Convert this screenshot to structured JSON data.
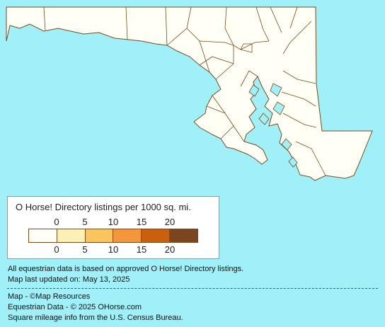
{
  "map": {
    "fill_color": "#fffff5",
    "border_color": "#7a4a1a",
    "water_color": "#a0f0fa"
  },
  "legend": {
    "title": "O Horse! Directory listings per 1000 sq. mi.",
    "top_ticks": [
      "0",
      "5",
      "10",
      "15",
      "20"
    ],
    "bottom_ticks": [
      "0",
      "5",
      "10",
      "15",
      "20"
    ],
    "swatches": [
      "#fffff5",
      "#fdf0b4",
      "#fbc55e",
      "#f4963a",
      "#c96010",
      "#7b4520"
    ]
  },
  "notes": {
    "data_basis": "All equestrian data is based on approved O Horse! Directory listings.",
    "updated": "Map last updated on: May 13, 2025"
  },
  "credits": {
    "map": "Map - ©Map Resources",
    "equestrian": "Equestrian Data - © 2025 OHorse.com",
    "census": "Square mileage info from the U.S. Census Bureau."
  }
}
